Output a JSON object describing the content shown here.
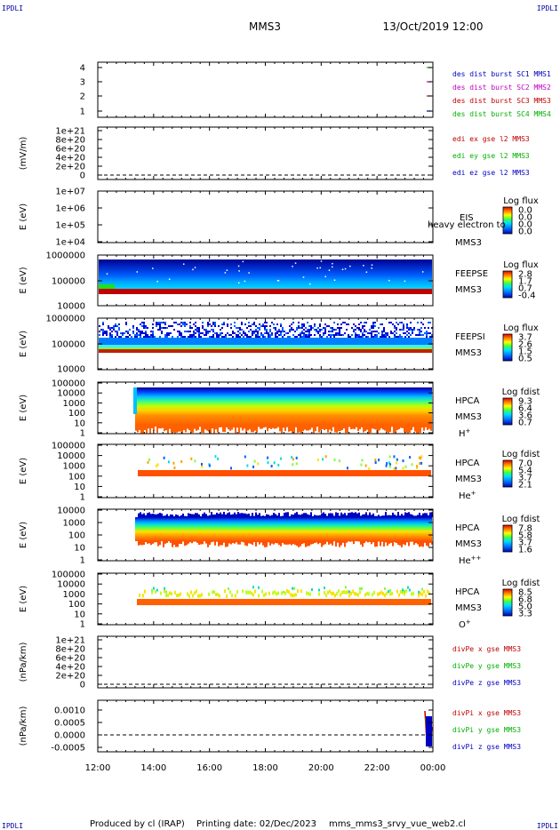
{
  "corners": {
    "tl": "IPDLI",
    "tr": "IPDLI",
    "bl": "IPDLI",
    "br": "IPDLI"
  },
  "header": {
    "spacecraft": "MMS3",
    "datetime": "13/Oct/2019 12:00"
  },
  "footer": {
    "producer": "Produced by cl (IRAP)",
    "printing_date": "Printing date: 02/Dec/2023",
    "filename": "mms_mms3_srvy_vue_web2.cl"
  },
  "chart_data": [
    {
      "id": "burst",
      "type": "line",
      "ylabel": "",
      "yticks": [
        "1",
        "2",
        "3",
        "4"
      ],
      "legend": [
        {
          "text": "des dist burst SC1 MMS1",
          "color": "#0000c0"
        },
        {
          "text": "des dist burst SC2 MMS2",
          "color": "#c000c0"
        },
        {
          "text": "des dist burst SC3 MMS3",
          "color": "#c00000"
        },
        {
          "text": "des dist burst SC4 MMS4",
          "color": "#00b000"
        }
      ]
    },
    {
      "id": "edi",
      "type": "line",
      "ylabel": "(mV/m)",
      "yticks": [
        "1e+21",
        "8e+20",
        "6e+20",
        "4e+20",
        "2e+20",
        "0"
      ],
      "legend": [
        {
          "text": "edi ex gse l2 MMS3",
          "color": "#c00000"
        },
        {
          "text": "edi ey gse l2 MMS3",
          "color": "#00b000"
        },
        {
          "text": "edi ez gse l2 MMS3",
          "color": "#0000c0"
        }
      ]
    },
    {
      "id": "eis",
      "type": "heatmap",
      "ylabel": "E (eV)",
      "yticks": [
        "1e+07",
        "1e+06",
        "1e+05",
        "1e+04"
      ],
      "labels": [
        "EIS",
        "MMS3"
      ],
      "overlay_text": "heavy electron to",
      "colorbar": {
        "title": "Log flux",
        "ticks": [
          "0.0",
          "0.0",
          "0.0",
          "0.0"
        ]
      }
    },
    {
      "id": "feepse",
      "type": "heatmap",
      "ylabel": "E (eV)",
      "yticks": [
        "1000000",
        "100000",
        "10000"
      ],
      "labels": [
        "FEEPSE",
        "MMS3"
      ],
      "colorbar": {
        "title": "Log flux",
        "ticks": [
          "2.8",
          "1.7",
          "0.7",
          "-0.4"
        ]
      }
    },
    {
      "id": "feepsi",
      "type": "heatmap",
      "ylabel": "E (eV)",
      "yticks": [
        "1000000",
        "100000",
        "10000"
      ],
      "labels": [
        "FEEPSI",
        "MMS3"
      ],
      "colorbar": {
        "title": "Log flux",
        "ticks": [
          "3.7",
          "2.6",
          "1.5",
          "0.5"
        ]
      }
    },
    {
      "id": "hpca_h",
      "type": "heatmap",
      "ylabel": "E (eV)",
      "yticks": [
        "100000",
        "10000",
        "1000",
        "100",
        "10",
        "1"
      ],
      "labels": [
        "HPCA",
        "MMS3"
      ],
      "species": {
        "base": "H",
        "sup": "+"
      },
      "colorbar": {
        "title": "Log fdist",
        "ticks": [
          "9.3",
          "6.4",
          "3.6",
          "0.7"
        ]
      }
    },
    {
      "id": "hpca_he",
      "type": "heatmap",
      "ylabel": "E (eV)",
      "yticks": [
        "100000",
        "10000",
        "1000",
        "100",
        "10",
        "1"
      ],
      "labels": [
        "HPCA",
        "MMS3"
      ],
      "species": {
        "base": "He",
        "sup": "+"
      },
      "colorbar": {
        "title": "Log fdist",
        "ticks": [
          "7.0",
          "5.4",
          "3.7",
          "2.1"
        ]
      }
    },
    {
      "id": "hpca_hepp",
      "type": "heatmap",
      "ylabel": "E (eV)",
      "yticks": [
        "10000",
        "1000",
        "100",
        "10",
        "1"
      ],
      "labels": [
        "HPCA",
        "MMS3"
      ],
      "species": {
        "base": "He",
        "sup": "++"
      },
      "colorbar": {
        "title": "Log fdist",
        "ticks": [
          "7.8",
          "5.8",
          "3.7",
          "1.6"
        ]
      }
    },
    {
      "id": "hpca_o",
      "type": "heatmap",
      "ylabel": "E (eV)",
      "yticks": [
        "100000",
        "10000",
        "1000",
        "100",
        "10",
        "1"
      ],
      "labels": [
        "HPCA",
        "MMS3"
      ],
      "species": {
        "base": "O",
        "sup": "+"
      },
      "colorbar": {
        "title": "Log fdist",
        "ticks": [
          "8.5",
          "6.8",
          "5.0",
          "3.3"
        ]
      }
    },
    {
      "id": "divpe",
      "type": "line",
      "ylabel": "(nPa/km)",
      "yticks": [
        "1e+21",
        "8e+20",
        "6e+20",
        "4e+20",
        "2e+20",
        "0"
      ],
      "legend": [
        {
          "text": "divPe x gse MMS3",
          "color": "#c00000"
        },
        {
          "text": "divPe y gse MMS3",
          "color": "#00b000"
        },
        {
          "text": "divPe z gse MMS3",
          "color": "#0000c0"
        }
      ]
    },
    {
      "id": "divpi",
      "type": "line",
      "ylabel": "(nPa/km)",
      "yticks": [
        "0.0010",
        "0.0005",
        "0.0000",
        "-0.0005"
      ],
      "legend": [
        {
          "text": "divPi x gse MMS3",
          "color": "#c00000"
        },
        {
          "text": "divPi y gse MMS3",
          "color": "#00b000"
        },
        {
          "text": "divPi z gse MMS3",
          "color": "#0000c0"
        }
      ]
    }
  ],
  "xaxis": {
    "ticks": [
      "12:00",
      "14:00",
      "16:00",
      "18:00",
      "20:00",
      "22:00",
      "00:00"
    ]
  }
}
